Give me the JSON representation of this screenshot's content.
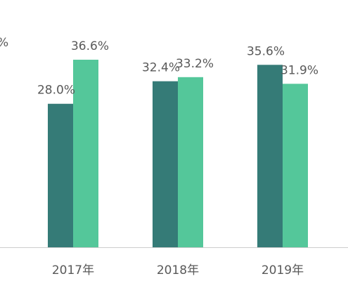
{
  "chart_data": {
    "type": "bar",
    "categories": [
      "2017年",
      "2018年",
      "2019年"
    ],
    "series": [
      {
        "values": [
          28.0,
          32.4,
          35.6
        ],
        "labels": [
          "28.0%",
          "32.4%",
          "35.6%"
        ],
        "color": "#357b77"
      },
      {
        "values": [
          36.6,
          33.2,
          31.9
        ],
        "labels": [
          "36.6%",
          "33.2%",
          "31.9%"
        ],
        "color": "#54c79a"
      }
    ],
    "ylim": [
      0,
      40
    ],
    "grid": false,
    "cropped_left_fragment": "%"
  },
  "colors": {
    "axis": "#cccccc",
    "text": "#595959"
  }
}
